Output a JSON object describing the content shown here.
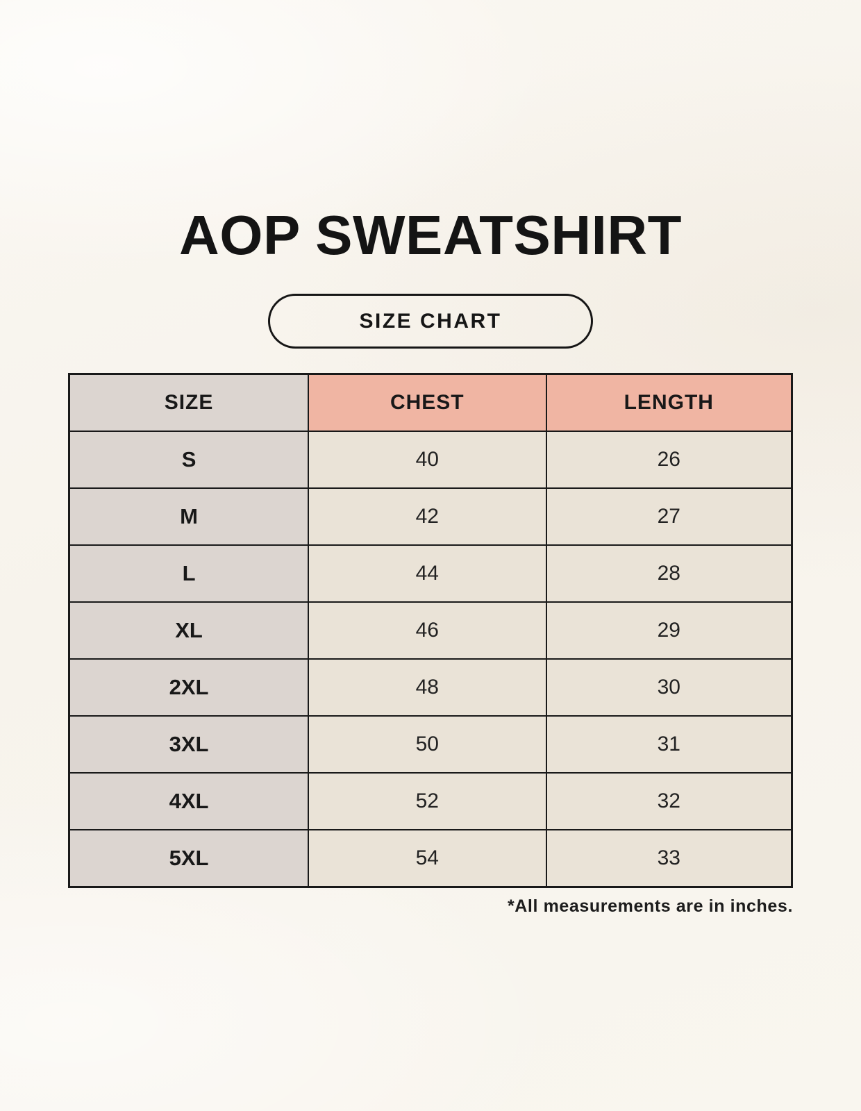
{
  "header": {
    "title": "AOP SWEATSHIRT",
    "badge_label": "SIZE CHART"
  },
  "table": {
    "headers": [
      "SIZE",
      "CHEST",
      "LENGTH"
    ],
    "rows": [
      [
        "S",
        "40",
        "26"
      ],
      [
        "M",
        "42",
        "27"
      ],
      [
        "L",
        "44",
        "28"
      ],
      [
        "XL",
        "46",
        "29"
      ],
      [
        "2XL",
        "48",
        "30"
      ],
      [
        "3XL",
        "50",
        "31"
      ],
      [
        "4XL",
        "52",
        "32"
      ],
      [
        "5XL",
        "54",
        "33"
      ]
    ]
  },
  "footnote": "*All measurements are in inches.",
  "colors": {
    "background": "#f7f3ec",
    "size_column": "#dcd5d0",
    "measure_header": "#f0b5a3",
    "value_cell": "#eae3d7",
    "border": "#191919",
    "text": "#1c1c1c"
  },
  "chart_data": {
    "type": "table",
    "title": "AOP SWEATSHIRT",
    "subtitle": "SIZE CHART",
    "columns": [
      "SIZE",
      "CHEST",
      "LENGTH"
    ],
    "rows": [
      {
        "size": "S",
        "chest": 40,
        "length": 26
      },
      {
        "size": "M",
        "chest": 42,
        "length": 27
      },
      {
        "size": "L",
        "chest": 44,
        "length": 28
      },
      {
        "size": "XL",
        "chest": 46,
        "length": 29
      },
      {
        "size": "2XL",
        "chest": 48,
        "length": 30
      },
      {
        "size": "3XL",
        "chest": 50,
        "length": 31
      },
      {
        "size": "4XL",
        "chest": 52,
        "length": 32
      },
      {
        "size": "5XL",
        "chest": 54,
        "length": 33
      }
    ],
    "units": "inches",
    "note": "*All measurements are in inches."
  }
}
